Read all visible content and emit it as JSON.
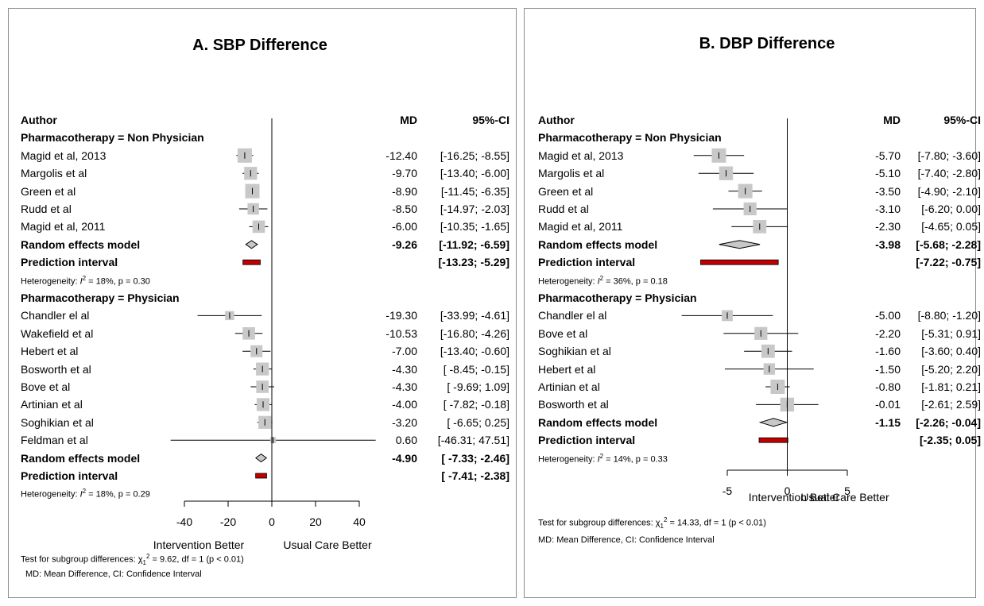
{
  "colors": {
    "box": "#c8c8c8",
    "diamond": "#c8c8c8",
    "prediction": "#c00000",
    "line": "#000000",
    "border": "#8c8c8c"
  },
  "chart_data": [
    {
      "type": "forest",
      "title": "A. SBP Difference",
      "header": {
        "author": "Author",
        "md": "MD",
        "ci": "95%-CI"
      },
      "xlim": [
        -40,
        40
      ],
      "ticks": [
        "-40",
        "-20",
        "0",
        "20",
        "40"
      ],
      "tick_values": [
        -40,
        -20,
        0,
        20,
        40
      ],
      "xlabel_left": "Intervention Better",
      "xlabel_right": "Usual Care Better",
      "footer_test": {
        "prefix": "Test for subgroup differences: χ",
        "sup": "2",
        "sub": "1",
        "rest": " = 9.62, df = 1 (p < 0.01)"
      },
      "footer_md": "MD:  Mean Difference, CI: Confidence Interval",
      "groups": [
        {
          "label": "Pharmacotherapy = Non Physician",
          "studies": [
            {
              "name": "Magid et al, 2013",
              "md": -12.4,
              "lo": -16.25,
              "hi": -8.55,
              "md_text": "-12.40",
              "ci_text": "[-16.25; -8.55]",
              "w": 1.0
            },
            {
              "name": "Margolis et al",
              "md": -9.7,
              "lo": -13.4,
              "hi": -6.0,
              "md_text": "-9.70",
              "ci_text": "[-13.40; -6.00]",
              "w": 0.85
            },
            {
              "name": "Green et al",
              "md": -8.9,
              "lo": -11.45,
              "hi": -6.35,
              "md_text": "-8.90",
              "ci_text": "[-11.45; -6.35]",
              "w": 1.0
            },
            {
              "name": "Rudd et al",
              "md": -8.5,
              "lo": -14.97,
              "hi": -2.03,
              "md_text": "-8.50",
              "ci_text": "[-14.97; -2.03]",
              "w": 0.7
            },
            {
              "name": "Magid et al, 2011",
              "md": -6.0,
              "lo": -10.35,
              "hi": -1.65,
              "md_text": "-6.00",
              "ci_text": "[-10.35; -1.65]",
              "w": 0.8
            }
          ],
          "random": {
            "label": "Random effects model",
            "md": -9.26,
            "lo": -11.92,
            "hi": -6.59,
            "md_text": "-9.26",
            "ci_text": "[-11.92; -6.59]"
          },
          "prediction": {
            "label": "Prediction interval",
            "lo": -13.23,
            "hi": -5.29,
            "ci_text": "[-13.23; -5.29]"
          },
          "het": {
            "prefix": "Heterogeneity: ",
            "I": "I",
            "sup": "2",
            "rest": " = 18%, p = 0.30"
          }
        },
        {
          "label": "Pharmacotherapy = Physician",
          "studies": [
            {
              "name": "Chandler el al",
              "md": -19.3,
              "lo": -33.99,
              "hi": -4.61,
              "md_text": "-19.30",
              "ci_text": "[-33.99; -4.61]",
              "w": 0.45
            },
            {
              "name": "Wakefield et al",
              "md": -10.53,
              "lo": -16.8,
              "hi": -4.26,
              "md_text": "-10.53",
              "ci_text": "[-16.80; -4.26]",
              "w": 0.8
            },
            {
              "name": "Hebert et al",
              "md": -7.0,
              "lo": -13.4,
              "hi": -0.6,
              "md_text": "-7.00",
              "ci_text": "[-13.40; -0.60]",
              "w": 0.75
            },
            {
              "name": "Bosworth et al",
              "md": -4.3,
              "lo": -8.45,
              "hi": -0.15,
              "md_text": "-4.30",
              "ci_text": "[ -8.45; -0.15]",
              "w": 0.85
            },
            {
              "name": "Bove et al",
              "md": -4.3,
              "lo": -9.69,
              "hi": 1.09,
              "md_text": "-4.30",
              "ci_text": "[ -9.69;  1.09]",
              "w": 0.8
            },
            {
              "name": "Artinian et al",
              "md": -4.0,
              "lo": -7.82,
              "hi": -0.18,
              "md_text": "-4.00",
              "ci_text": "[ -7.82; -0.18]",
              "w": 0.85
            },
            {
              "name": "Soghikian et al",
              "md": -3.2,
              "lo": -6.65,
              "hi": 0.25,
              "md_text": "-3.20",
              "ci_text": "[ -6.65;  0.25]",
              "w": 0.85
            },
            {
              "name": "Feldman et al",
              "md": 0.6,
              "lo": -46.31,
              "hi": 47.51,
              "md_text": "0.60",
              "ci_text": "[-46.31; 47.51]",
              "w": 0.1
            }
          ],
          "random": {
            "label": "Random effects model",
            "md": -4.9,
            "lo": -7.33,
            "hi": -2.46,
            "md_text": "-4.90",
            "ci_text": "[ -7.33; -2.46]"
          },
          "prediction": {
            "label": "Prediction interval",
            "lo": -7.41,
            "hi": -2.38,
            "ci_text": "[ -7.41; -2.38]"
          },
          "het": {
            "prefix": "Heterogeneity: ",
            "I": "I",
            "sup": "2",
            "rest": " = 18%, p = 0.29"
          }
        }
      ]
    },
    {
      "type": "forest",
      "title": "B. DBP Difference",
      "header": {
        "author": "Author",
        "md": "MD",
        "ci": "95%-CI"
      },
      "xlim": [
        -5,
        5
      ],
      "ticks": [
        "-5",
        "0",
        "5"
      ],
      "tick_values": [
        -5,
        0,
        5
      ],
      "xlabel_left": "Intervention Better",
      "xlabel_right": "Usual Care Better",
      "footer_test": {
        "prefix": "Test for subgroup differences: χ",
        "sup": "2",
        "sub": "1",
        "rest": " = 14.33, df = 1 (p < 0.01)"
      },
      "footer_md": "MD:  Mean Difference, CI: Confidence Interval",
      "groups": [
        {
          "label": "Pharmacotherapy = Non Physician",
          "studies": [
            {
              "name": "Magid et al, 2013",
              "md": -5.7,
              "lo": -7.8,
              "hi": -3.6,
              "md_text": "-5.70",
              "ci_text": "[-7.80; -3.60]",
              "w": 1.0
            },
            {
              "name": "Margolis et al",
              "md": -5.1,
              "lo": -7.4,
              "hi": -2.8,
              "md_text": "-5.10",
              "ci_text": "[-7.40; -2.80]",
              "w": 0.95
            },
            {
              "name": "Green et al",
              "md": -3.5,
              "lo": -4.9,
              "hi": -2.1,
              "md_text": "-3.50",
              "ci_text": "[-4.90; -2.10]",
              "w": 1.0
            },
            {
              "name": "Rudd et al",
              "md": -3.1,
              "lo": -6.2,
              "hi": 0.0,
              "md_text": "-3.10",
              "ci_text": "[-6.20;  0.00]",
              "w": 0.85
            },
            {
              "name": "Magid et al, 2011",
              "md": -2.3,
              "lo": -4.65,
              "hi": 0.05,
              "md_text": "-2.30",
              "ci_text": "[-4.65;  0.05]",
              "w": 0.9
            }
          ],
          "random": {
            "label": "Random effects model",
            "md": -3.98,
            "lo": -5.68,
            "hi": -2.28,
            "md_text": "-3.98",
            "ci_text": "[-5.68; -2.28]"
          },
          "prediction": {
            "label": "Prediction interval",
            "lo": -7.22,
            "hi": -0.75,
            "ci_text": "[-7.22; -0.75]"
          },
          "het": {
            "prefix": "Heterogeneity: ",
            "I": "I",
            "sup": "2",
            "rest": " = 36%, p = 0.18"
          }
        },
        {
          "label": "Pharmacotherapy = Physician",
          "studies": [
            {
              "name": "Chandler el al",
              "md": -5.0,
              "lo": -8.8,
              "hi": -1.2,
              "md_text": "-5.00",
              "ci_text": "[-8.80; -1.20]",
              "w": 0.65
            },
            {
              "name": "Bove et al",
              "md": -2.2,
              "lo": -5.31,
              "hi": 0.91,
              "md_text": "-2.20",
              "ci_text": "[-5.31;  0.91]",
              "w": 0.85
            },
            {
              "name": "Soghikian et al",
              "md": -1.6,
              "lo": -3.6,
              "hi": 0.4,
              "md_text": "-1.60",
              "ci_text": "[-3.60;  0.40]",
              "w": 0.9
            },
            {
              "name": "Hebert et al",
              "md": -1.5,
              "lo": -5.2,
              "hi": 2.2,
              "md_text": "-1.50",
              "ci_text": "[-5.20;  2.20]",
              "w": 0.7
            },
            {
              "name": "Artinian et al",
              "md": -0.8,
              "lo": -1.81,
              "hi": 0.21,
              "md_text": "-0.80",
              "ci_text": "[-1.81;  0.21]",
              "w": 1.0
            },
            {
              "name": "Bosworth et al",
              "md": -0.01,
              "lo": -2.61,
              "hi": 2.59,
              "md_text": "-0.01",
              "ci_text": "[-2.61;  2.59]",
              "w": 0.95
            }
          ],
          "random": {
            "label": "Random effects model",
            "md": -1.15,
            "lo": -2.26,
            "hi": -0.04,
            "md_text": "-1.15",
            "ci_text": "[-2.26; -0.04]"
          },
          "prediction": {
            "label": "Prediction interval",
            "lo": -2.35,
            "hi": 0.05,
            "ci_text": "[-2.35;  0.05]"
          },
          "het": {
            "prefix": "Heterogeneity: ",
            "I": "I",
            "sup": "2",
            "rest": " = 14%, p = 0.33"
          }
        }
      ]
    }
  ]
}
